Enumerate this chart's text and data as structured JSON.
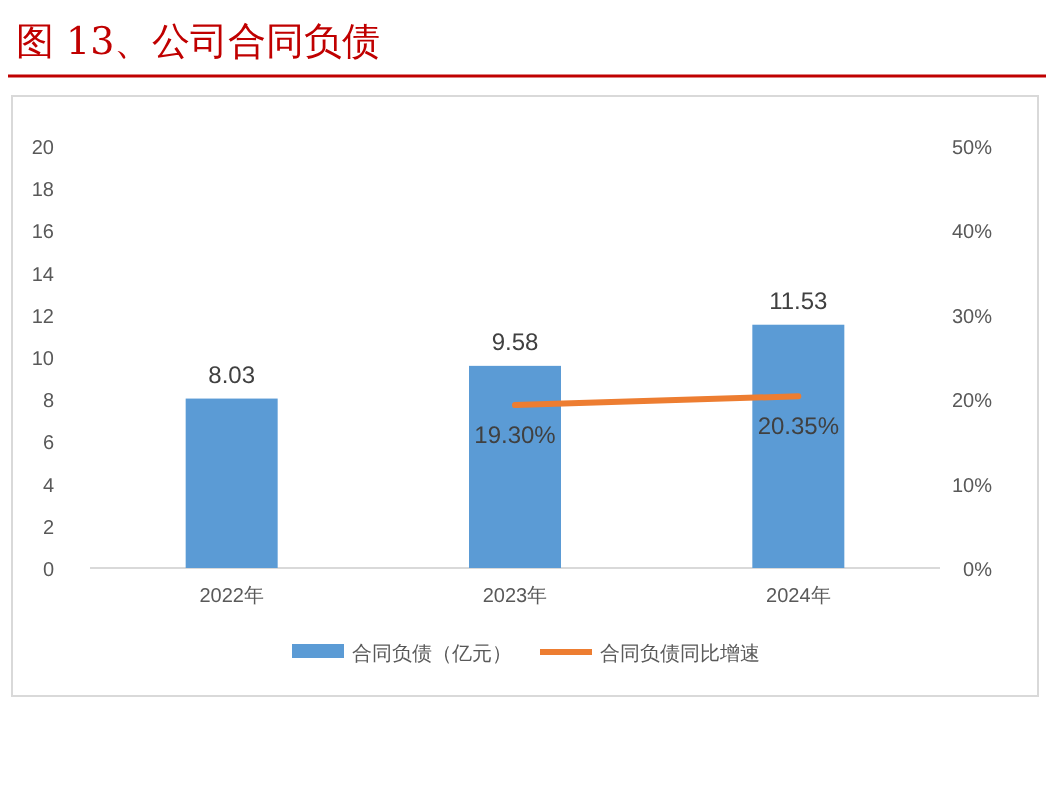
{
  "chart_data": {
    "type": "bar",
    "title": "图 13、公司合同负债",
    "categories": [
      "2022年",
      "2023年",
      "2024年"
    ],
    "series": [
      {
        "name": "合同负债（亿元）",
        "color": "#5b9bd5",
        "values": [
          8.03,
          9.58,
          11.53
        ],
        "value_labels": [
          "8.03",
          "9.58",
          "11.53"
        ]
      },
      {
        "name": "合同负债同比增速",
        "type": "line",
        "axis": "y2",
        "color": "#ed7d31",
        "values": [
          null,
          19.3,
          20.35
        ],
        "value_labels": [
          null,
          "19.30%",
          "20.35%"
        ]
      }
    ],
    "ylim": [
      0,
      20
    ],
    "yticks": [
      0,
      2,
      4,
      6,
      8,
      10,
      12,
      14,
      16,
      18,
      20
    ],
    "y2lim": [
      0,
      50
    ],
    "y2ticks": [
      {
        "value": 0,
        "label": "0%"
      },
      {
        "value": 10,
        "label": "10%"
      },
      {
        "value": 20,
        "label": "20%"
      },
      {
        "value": 30,
        "label": "30%"
      },
      {
        "value": 40,
        "label": "40%"
      },
      {
        "value": 50,
        "label": "50%"
      }
    ],
    "legend": "bottom",
    "marker": "none",
    "line_style": "solid"
  }
}
